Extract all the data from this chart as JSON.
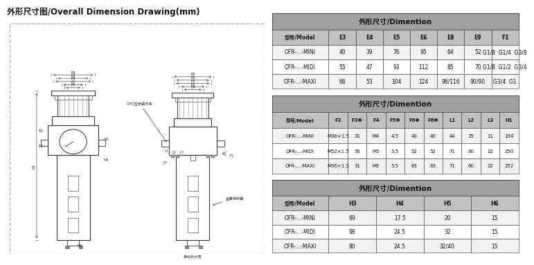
{
  "title": "外形尺寸图/Overall Dimension Drawing(mm)",
  "table1_title": "外形尺寸/Dimention",
  "table1_header": [
    "型号/Model",
    "E3",
    "E4",
    "E5",
    "E6",
    "E8",
    "E9",
    "F1"
  ],
  "table1_rows": [
    [
      "OFR-...-MINI",
      "40",
      "39",
      "76",
      "95",
      "64",
      "52",
      "G1/8  G1/4  G3/8"
    ],
    [
      "OFR-...-MIDI",
      "55",
      "47",
      "93",
      "112",
      "85",
      "70",
      "G1/8  G1/2  G3/4"
    ],
    [
      "OFR-...-MAXI",
      "66",
      "53",
      "104",
      "124",
      "96/116",
      "90/90",
      "G3/4  G1"
    ]
  ],
  "table2_title": "外形尺寸/Dimention",
  "table2_header": [
    "型号/Model",
    "F2",
    "F3Φ",
    "F4",
    "F5Φ",
    "F6Φ",
    "F6Φ",
    "L1",
    "L2",
    "L3",
    "H1"
  ],
  "table2_rows": [
    [
      "OFR-...-MINI",
      "M36×1.5",
      "31",
      "M4",
      "4.5",
      "40",
      "40",
      "44",
      "35",
      "11",
      "194"
    ],
    [
      "OFR-...-MIDI",
      "M52×1.5",
      "50",
      "M5",
      "5.5",
      "52",
      "52",
      "71",
      "60",
      "22",
      "250"
    ],
    [
      "OFR-...-MAXI",
      "M36×1.5",
      "31",
      "M5",
      "5.5",
      "63",
      "63",
      "71",
      "60",
      "22",
      "252"
    ]
  ],
  "table3_title": "外形尺寸/Dimention",
  "table3_header": [
    "型号/Model",
    "H3",
    "H4",
    "H5",
    "H6"
  ],
  "table3_rows": [
    [
      "OFR-...-MINI",
      "69",
      "17.5",
      "20",
      "15"
    ],
    [
      "OFR-...-MIDI",
      "98",
      "24.5",
      "32",
      "15"
    ],
    [
      "OFR-...-MAXI",
      "80",
      "24.5",
      "32/40",
      "15"
    ]
  ],
  "bg_color": "#ffffff",
  "table_header_bg": "#b0b0b0",
  "table_title_bg": "#a0a0a0",
  "table_row_bg": "#ffffff",
  "table_border_color": "#555555",
  "drawing_bg": "#f0f0f0",
  "label_color": "#333333"
}
